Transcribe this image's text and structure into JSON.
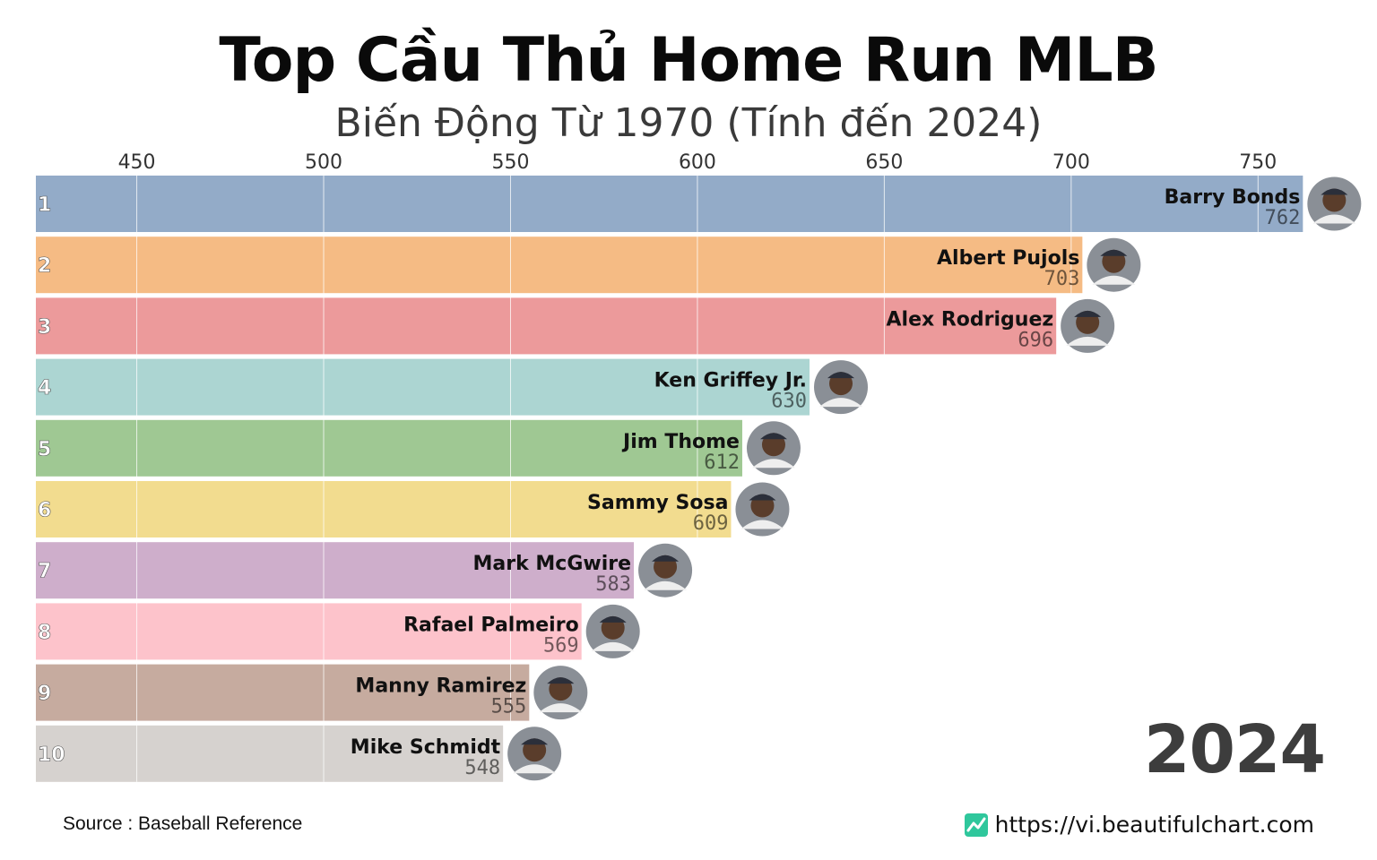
{
  "header": {
    "title": "Top Cầu Thủ Home Run MLB",
    "subtitle": "Biến Động Từ 1970 (Tính đến 2024)"
  },
  "year_label": "2024",
  "footer": {
    "source": "Source : Baseball Reference",
    "website": "https://vi.beautifulchart.com"
  },
  "chart_data": {
    "type": "bar",
    "orientation": "horizontal",
    "xlim": [
      423,
      760
    ],
    "x_ticks": [
      450,
      500,
      550,
      600,
      650,
      700,
      750
    ],
    "x_tick_labels": [
      "450",
      "500",
      "550",
      "600",
      "650",
      "700",
      "750"
    ],
    "grid": true,
    "ranks": [
      "1",
      "2",
      "3",
      "4",
      "5",
      "6",
      "7",
      "8",
      "9",
      "10"
    ],
    "categories": [
      "Barry Bonds",
      "Albert Pujols",
      "Alex Rodriguez",
      "Ken Griffey Jr.",
      "Jim Thome",
      "Sammy Sosa",
      "Mark McGwire",
      "Rafael Palmeiro",
      "Manny Ramirez",
      "Mike Schmidt"
    ],
    "values": [
      762,
      703,
      696,
      630,
      612,
      609,
      583,
      569,
      555,
      548
    ],
    "value_labels": [
      "762",
      "703",
      "696",
      "630",
      "612",
      "609",
      "583",
      "569",
      "555",
      "548"
    ],
    "colors": [
      "#93abc8",
      "#f5bb84",
      "#ec9a9b",
      "#acd5d2",
      "#9fc893",
      "#f2dc8f",
      "#ceaecb",
      "#fdc3cb",
      "#c6ab9f",
      "#d6d2cf"
    ]
  }
}
